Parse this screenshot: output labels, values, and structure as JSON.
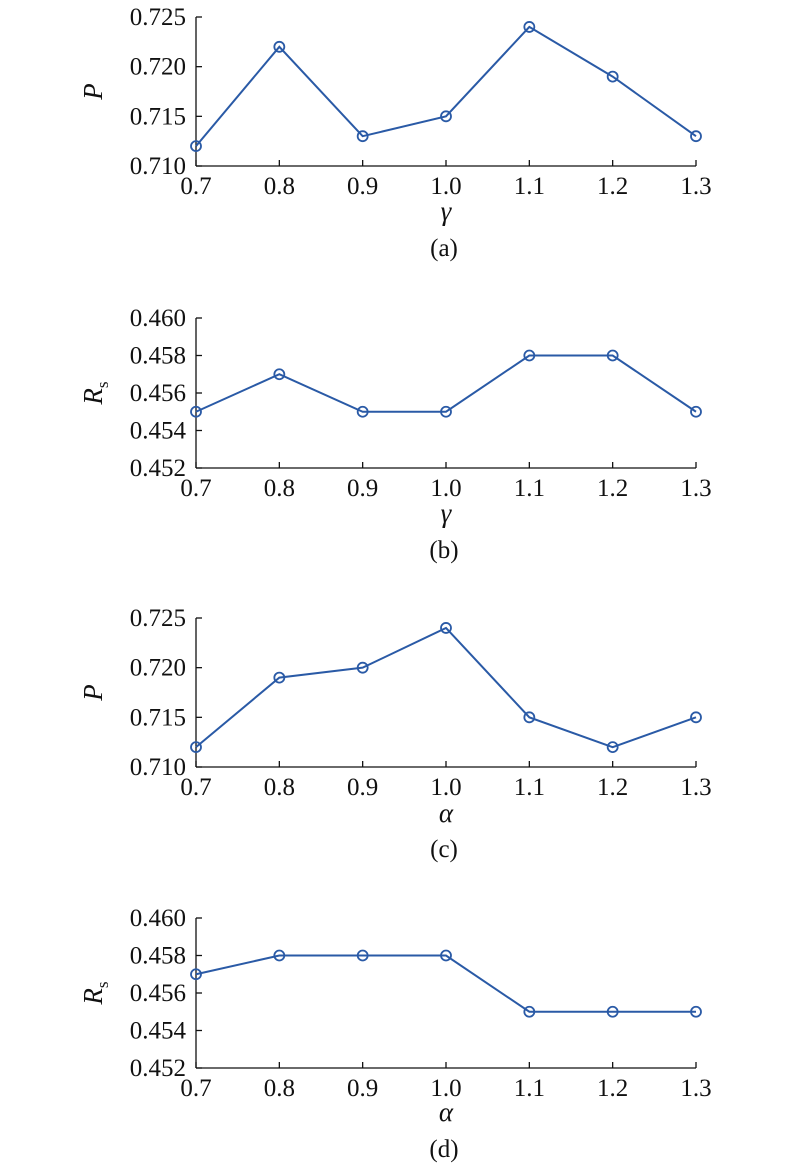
{
  "chart_data": [
    {
      "type": "line",
      "caption": "(a)",
      "xlabel": "γ",
      "ylabel": "P",
      "ylabel_sub": "",
      "x": [
        0.7,
        0.8,
        0.9,
        1.0,
        1.1,
        1.2,
        1.3
      ],
      "xticks": [
        "0.7",
        "0.8",
        "0.9",
        "1.0",
        "1.1",
        "1.2",
        "1.3"
      ],
      "yticks": [
        "0.710",
        "0.715",
        "0.720",
        "0.725"
      ],
      "xlim": [
        0.7,
        1.3
      ],
      "ylim": [
        0.71,
        0.725
      ],
      "grid": false,
      "series": [
        {
          "values": [
            0.712,
            0.722,
            0.713,
            0.715,
            0.724,
            0.719,
            0.713
          ]
        }
      ]
    },
    {
      "type": "line",
      "caption": "(b)",
      "xlabel": "γ",
      "ylabel": "R",
      "ylabel_sub": "s",
      "x": [
        0.7,
        0.8,
        0.9,
        1.0,
        1.1,
        1.2,
        1.3
      ],
      "xticks": [
        "0.7",
        "0.8",
        "0.9",
        "1.0",
        "1.1",
        "1.2",
        "1.3"
      ],
      "yticks": [
        "0.452",
        "0.454",
        "0.456",
        "0.458",
        "0.460"
      ],
      "xlim": [
        0.7,
        1.3
      ],
      "ylim": [
        0.452,
        0.46
      ],
      "grid": false,
      "series": [
        {
          "values": [
            0.455,
            0.457,
            0.455,
            0.455,
            0.458,
            0.458,
            0.455
          ]
        }
      ]
    },
    {
      "type": "line",
      "caption": "(c)",
      "xlabel": "α",
      "ylabel": "P",
      "ylabel_sub": "",
      "x": [
        0.7,
        0.8,
        0.9,
        1.0,
        1.1,
        1.2,
        1.3
      ],
      "xticks": [
        "0.7",
        "0.8",
        "0.9",
        "1.0",
        "1.1",
        "1.2",
        "1.3"
      ],
      "yticks": [
        "0.710",
        "0.715",
        "0.720",
        "0.725"
      ],
      "xlim": [
        0.7,
        1.3
      ],
      "ylim": [
        0.71,
        0.725
      ],
      "grid": false,
      "series": [
        {
          "values": [
            0.712,
            0.719,
            0.72,
            0.724,
            0.715,
            0.712,
            0.715
          ]
        }
      ]
    },
    {
      "type": "line",
      "caption": "(d)",
      "xlabel": "α",
      "ylabel": "R",
      "ylabel_sub": "s",
      "x": [
        0.7,
        0.8,
        0.9,
        1.0,
        1.1,
        1.2,
        1.3
      ],
      "xticks": [
        "0.7",
        "0.8",
        "0.9",
        "1.0",
        "1.1",
        "1.2",
        "1.3"
      ],
      "yticks": [
        "0.452",
        "0.454",
        "0.456",
        "0.458",
        "0.460"
      ],
      "xlim": [
        0.7,
        1.3
      ],
      "ylim": [
        0.452,
        0.46
      ],
      "grid": false,
      "series": [
        {
          "values": [
            0.457,
            0.458,
            0.458,
            0.458,
            0.455,
            0.455,
            0.455
          ]
        }
      ]
    }
  ],
  "colors": {
    "series": "#2a5aa6",
    "axis": "#111111"
  }
}
